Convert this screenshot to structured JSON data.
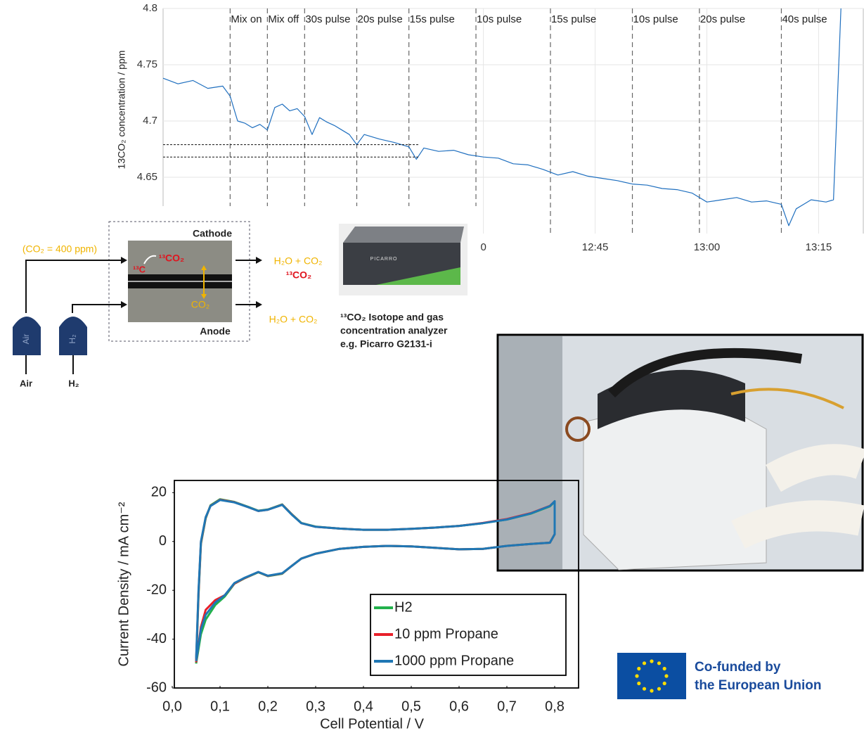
{
  "chart_data": [
    {
      "type": "line",
      "y_label": "13CO₂ concentration / ppm",
      "xlim": [
        "11:47",
        "13:21"
      ],
      "ylim": [
        4.6,
        4.8
      ],
      "yticks": [
        4.65,
        4.7,
        4.75,
        4.8
      ],
      "xticks": [
        {
          "value": "12:30",
          "label": "0"
        },
        "12:45",
        "13:00",
        "13:15"
      ],
      "grid": true,
      "events": [
        {
          "x": "11:56",
          "label": "Mix on"
        },
        {
          "x": "12:01",
          "label": "Mix off"
        },
        {
          "x": "12:06",
          "label": "30s pulse"
        },
        {
          "x": "12:13",
          "label": "20s pulse"
        },
        {
          "x": "12:20",
          "label": "15s pulse"
        },
        {
          "x": "12:29",
          "label": "10s pulse"
        },
        {
          "x": "12:39",
          "label": "15s pulse"
        },
        {
          "x": "12:50",
          "label": "10s pulse"
        },
        {
          "x": "12:59",
          "label": "20s pulse"
        },
        {
          "x": "13:10",
          "label": "40s pulse"
        }
      ],
      "reference_lines": [
        4.679,
        4.668
      ],
      "x": [
        "11:47",
        "11:49",
        "11:51",
        "11:53",
        "11:55",
        "11:56",
        "11:57",
        "11:58",
        "11:59",
        "12:00",
        "12:01",
        "12:02",
        "12:03",
        "12:04",
        "12:05",
        "12:06",
        "12:07",
        "12:08",
        "12:09",
        "12:10",
        "12:11",
        "12:12",
        "12:13",
        "12:14",
        "12:16",
        "12:18",
        "12:20",
        "12:21",
        "12:22",
        "12:24",
        "12:26",
        "12:28",
        "12:30",
        "12:32",
        "12:34",
        "12:36",
        "12:38",
        "12:40",
        "12:42",
        "12:44",
        "12:46",
        "12:48",
        "12:50",
        "12:52",
        "12:54",
        "12:56",
        "12:58",
        "13:00",
        "13:02",
        "13:04",
        "13:06",
        "13:08",
        "13:10",
        "13:11",
        "13:12",
        "13:14",
        "13:16",
        "13:17",
        "13:18"
      ],
      "series": [
        {
          "color": "#1f6fbf",
          "values": [
            4.738,
            4.733,
            4.736,
            4.729,
            4.731,
            4.722,
            4.7,
            4.698,
            4.694,
            4.697,
            4.692,
            4.712,
            4.715,
            4.709,
            4.711,
            4.704,
            4.688,
            4.703,
            4.699,
            4.696,
            4.692,
            4.688,
            4.679,
            4.688,
            4.684,
            4.681,
            4.677,
            4.666,
            4.676,
            4.673,
            4.674,
            4.67,
            4.668,
            4.667,
            4.662,
            4.661,
            4.657,
            4.652,
            4.655,
            4.651,
            4.649,
            4.647,
            4.644,
            4.643,
            4.64,
            4.639,
            4.636,
            4.628,
            4.63,
            4.632,
            4.628,
            4.629,
            4.626,
            4.607,
            4.622,
            4.63,
            4.628,
            4.63,
            4.8
          ]
        }
      ]
    },
    {
      "type": "line",
      "x_label": "Cell Potential / V",
      "y_label": "Current Density / mA cm⁻²",
      "xlim": [
        0,
        0.85
      ],
      "ylim": [
        -60,
        25
      ],
      "xticks": [
        {
          "value": 0,
          "label": "0,0"
        },
        {
          "value": 0.1,
          "label": "0,1"
        },
        {
          "value": 0.2,
          "label": "0,2"
        },
        {
          "value": 0.3,
          "label": "0,3"
        },
        {
          "value": 0.4,
          "label": "0,4"
        },
        {
          "value": 0.5,
          "label": "0,5"
        },
        {
          "value": 0.6,
          "label": "0,6"
        },
        {
          "value": 0.7,
          "label": "0,7"
        },
        {
          "value": 0.8,
          "label": "0,8"
        }
      ],
      "yticks": [
        -60,
        -40,
        -20,
        0,
        20
      ],
      "legend": "lower right",
      "x": [
        0.05,
        0.055,
        0.06,
        0.07,
        0.08,
        0.1,
        0.13,
        0.16,
        0.18,
        0.2,
        0.23,
        0.25,
        0.27,
        0.3,
        0.35,
        0.4,
        0.45,
        0.5,
        0.55,
        0.6,
        0.65,
        0.7,
        0.75,
        0.79,
        0.8,
        0.8,
        0.79,
        0.75,
        0.7,
        0.65,
        0.6,
        0.55,
        0.5,
        0.45,
        0.4,
        0.35,
        0.3,
        0.27,
        0.25,
        0.23,
        0.2,
        0.18,
        0.15,
        0.13,
        0.11,
        0.09,
        0.07,
        0.06,
        0.05
      ],
      "series": [
        {
          "name": "H2",
          "color": "#22b14c",
          "values": [
            -50,
            -22,
            -1,
            9.5,
            14.8,
            17.3,
            16.2,
            14.1,
            12.6,
            13.1,
            15.2,
            11.2,
            7.6,
            6.1,
            5.3,
            4.8,
            4.8,
            5.2,
            5.7,
            6.4,
            7.5,
            9,
            11.4,
            14.4,
            16.3,
            3,
            -0.5,
            -1,
            -1.8,
            -3,
            -3.2,
            -2.6,
            -2,
            -1.8,
            -2.2,
            -3,
            -5,
            -7,
            -10,
            -13.2,
            -14.2,
            -12.6,
            -15.2,
            -17.3,
            -22.5,
            -26,
            -32,
            -38,
            -50
          ]
        },
        {
          "name": "10 ppm Propane",
          "color": "#e8202a",
          "values": [
            -49,
            -21,
            -0.5,
            9.8,
            14.6,
            17.1,
            16.1,
            14,
            12.5,
            13,
            15.1,
            11.1,
            7.5,
            6,
            5.3,
            4.8,
            4.8,
            5.2,
            5.7,
            6.4,
            7.6,
            9.2,
            11.6,
            14.6,
            16.4,
            3,
            -0.5,
            -1,
            -1.8,
            -3,
            -3.2,
            -2.6,
            -2,
            -1.8,
            -2.2,
            -3,
            -5,
            -7,
            -10,
            -13.1,
            -14.1,
            -12.5,
            -15.1,
            -17.2,
            -22,
            -24,
            -28,
            -35,
            -49.5
          ]
        },
        {
          "name": "1000 ppm Propane",
          "color": "#1f77b4",
          "values": [
            -48,
            -20,
            0,
            10,
            14.5,
            17,
            16,
            14,
            12.5,
            13,
            15,
            11,
            7.5,
            6,
            5.3,
            4.8,
            4.8,
            5.2,
            5.7,
            6.4,
            7.5,
            9,
            11.5,
            14.5,
            16.5,
            3,
            -0.5,
            -1,
            -1.8,
            -3,
            -3.2,
            -2.6,
            -2,
            -1.8,
            -2.2,
            -3,
            -5,
            -7,
            -10,
            -13,
            -14,
            -12.5,
            -15,
            -17,
            -22,
            -25,
            -30,
            -36,
            -49
          ]
        }
      ]
    }
  ],
  "diagram": {
    "inlet": "(CO₂ = 400 ppm)",
    "cathode": "Cathode",
    "anode": "Anode",
    "carbon": "¹³C",
    "cathode_product": "¹³CO₂",
    "crossover": "CO₂",
    "cathode_out": "H₂O + CO₂",
    "cathode_out_isotope": "¹³CO₂",
    "anode_out": "H₂O + CO₂",
    "tanks": [
      {
        "label": "Air",
        "caption": "Air"
      },
      {
        "label": "H₂",
        "caption": "H₂"
      }
    ]
  },
  "analyzer": {
    "brand": "PICARRO",
    "caption": [
      "¹³CO₂ Isotope and gas",
      "concentration analyzer",
      "e.g. Picarro G2131-i"
    ]
  },
  "logo": {
    "lines": [
      "Co-funded by",
      "the European Union"
    ]
  }
}
